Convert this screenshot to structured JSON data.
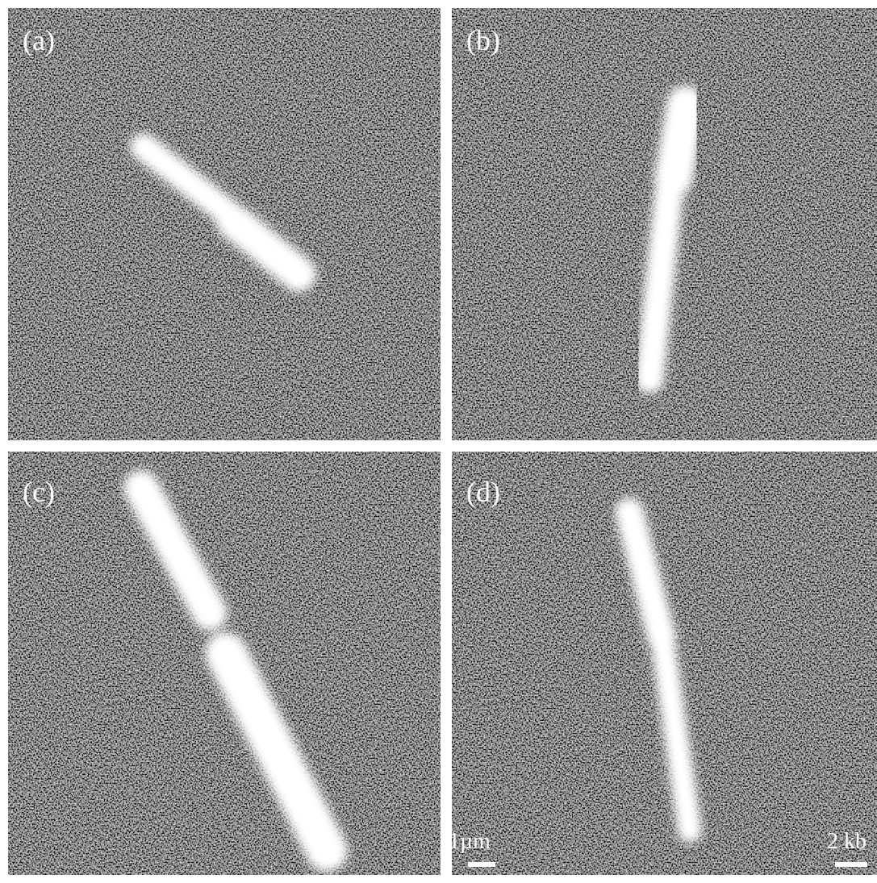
{
  "panels": [
    {
      "label": "(a)"
    },
    {
      "label": "(b)"
    },
    {
      "label": "(c)"
    },
    {
      "label": "(d)",
      "scale_bars": [
        "1µm",
        "2 kb"
      ]
    }
  ]
}
